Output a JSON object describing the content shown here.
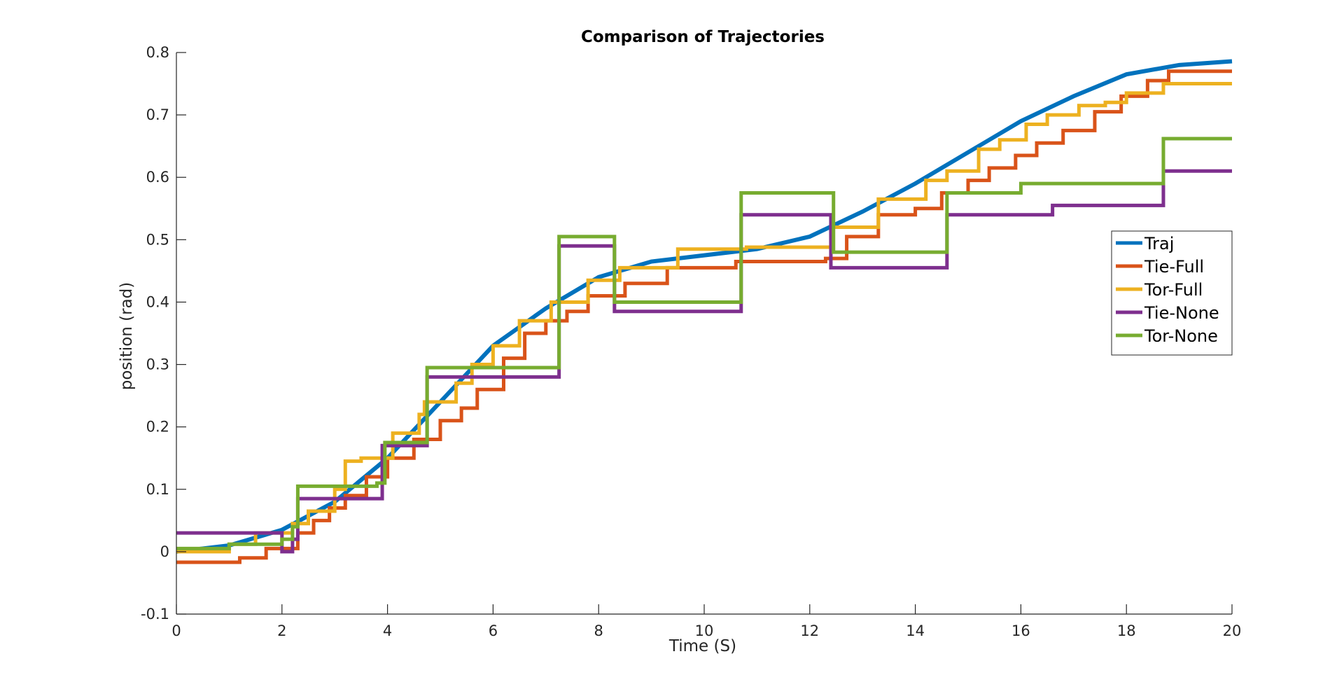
{
  "chart_data": {
    "type": "line",
    "title": "Comparison of Trajectories",
    "xlabel": "Time (S)",
    "ylabel": "position (rad)",
    "xlim": [
      0,
      20
    ],
    "ylim": [
      -0.1,
      0.8
    ],
    "xticks": [
      0,
      2,
      4,
      6,
      8,
      10,
      12,
      14,
      16,
      18,
      20
    ],
    "yticks": [
      -0.1,
      0,
      0.1,
      0.2,
      0.3,
      0.4,
      0.5,
      0.6,
      0.7,
      0.8
    ],
    "xtick_labels": [
      "0",
      "2",
      "4",
      "6",
      "8",
      "10",
      "12",
      "14",
      "16",
      "18",
      "20"
    ],
    "ytick_labels": [
      "-0.1",
      "0",
      "0.1",
      "0.2",
      "0.3",
      "0.4",
      "0.5",
      "0.6",
      "0.7",
      "0.8"
    ],
    "grid": false,
    "legend_position": "right",
    "series": [
      {
        "name": "Traj",
        "color": "#0072BD",
        "style": "smooth",
        "x": [
          0,
          1,
          2,
          3,
          4,
          5,
          6,
          7,
          8,
          9,
          10,
          11,
          12,
          13,
          14,
          15,
          16,
          17,
          18,
          19,
          20
        ],
        "y": [
          0,
          0.01,
          0.035,
          0.08,
          0.15,
          0.24,
          0.33,
          0.39,
          0.44,
          0.465,
          0.475,
          0.485,
          0.505,
          0.545,
          0.59,
          0.64,
          0.69,
          0.73,
          0.765,
          0.78,
          0.786
        ]
      },
      {
        "name": "Tie-Full",
        "color": "#D95319",
        "style": "step",
        "x": [
          0,
          1.2,
          1.7,
          2.3,
          2.6,
          2.9,
          3.2,
          3.6,
          4.0,
          4.5,
          5.0,
          5.4,
          5.7,
          6.2,
          6.6,
          7.0,
          7.4,
          7.8,
          8.5,
          9.3,
          10.6,
          12.3,
          12.7,
          13.3,
          14.0,
          14.5,
          15.0,
          15.4,
          15.9,
          16.3,
          16.8,
          17.4,
          17.9,
          18.4,
          18.8,
          20
        ],
        "y": [
          -0.017,
          -0.01,
          0.005,
          0.03,
          0.05,
          0.07,
          0.09,
          0.12,
          0.15,
          0.18,
          0.21,
          0.23,
          0.26,
          0.31,
          0.35,
          0.37,
          0.385,
          0.41,
          0.43,
          0.455,
          0.465,
          0.47,
          0.505,
          0.54,
          0.55,
          0.575,
          0.595,
          0.615,
          0.635,
          0.655,
          0.675,
          0.705,
          0.73,
          0.755,
          0.77,
          0.77
        ]
      },
      {
        "name": "Tor-Full",
        "color": "#EDB120",
        "style": "step",
        "x": [
          0,
          1.0,
          1.5,
          2.2,
          2.5,
          3.0,
          3.2,
          3.5,
          4.1,
          4.6,
          4.7,
          5.3,
          5.6,
          6.0,
          6.5,
          7.1,
          7.8,
          8.4,
          9.5,
          10.8,
          12.4,
          13.3,
          14.2,
          14.6,
          15.2,
          15.6,
          16.1,
          16.5,
          17.1,
          17.6,
          18.0,
          18.7,
          20
        ],
        "y": [
          0.0,
          0.012,
          0.03,
          0.045,
          0.065,
          0.1,
          0.145,
          0.15,
          0.19,
          0.22,
          0.24,
          0.27,
          0.3,
          0.33,
          0.37,
          0.4,
          0.435,
          0.455,
          0.485,
          0.488,
          0.52,
          0.565,
          0.595,
          0.61,
          0.645,
          0.66,
          0.685,
          0.7,
          0.715,
          0.72,
          0.735,
          0.75,
          0.75
        ]
      },
      {
        "name": "Tie-None",
        "color": "#7E2F8E",
        "style": "step",
        "x": [
          0,
          2.0,
          2.2,
          2.3,
          3.8,
          3.9,
          4.6,
          4.75,
          7.05,
          7.25,
          8.1,
          8.3,
          10.5,
          10.7,
          12.3,
          12.4,
          14.4,
          14.6,
          16.5,
          16.6,
          18.5,
          18.7,
          20
        ],
        "y": [
          0.03,
          0.0,
          0.02,
          0.085,
          0.085,
          0.17,
          0.17,
          0.28,
          0.28,
          0.49,
          0.49,
          0.385,
          0.385,
          0.54,
          0.54,
          0.455,
          0.455,
          0.54,
          0.54,
          0.555,
          0.555,
          0.61,
          0.61
        ]
      },
      {
        "name": "Tor-None",
        "color": "#77AC30",
        "style": "step",
        "x": [
          0,
          1.0,
          2.0,
          2.2,
          2.3,
          3.1,
          3.8,
          3.95,
          4.6,
          4.75,
          7.05,
          7.25,
          8.1,
          8.3,
          10.5,
          10.7,
          12.3,
          12.45,
          14.4,
          14.6,
          16.0,
          16.8,
          18.5,
          18.7,
          20
        ],
        "y": [
          0.005,
          0.012,
          0.02,
          0.04,
          0.105,
          0.105,
          0.11,
          0.175,
          0.175,
          0.295,
          0.295,
          0.505,
          0.505,
          0.4,
          0.4,
          0.575,
          0.575,
          0.48,
          0.48,
          0.575,
          0.59,
          0.59,
          0.59,
          0.662,
          0.662
        ]
      }
    ]
  }
}
